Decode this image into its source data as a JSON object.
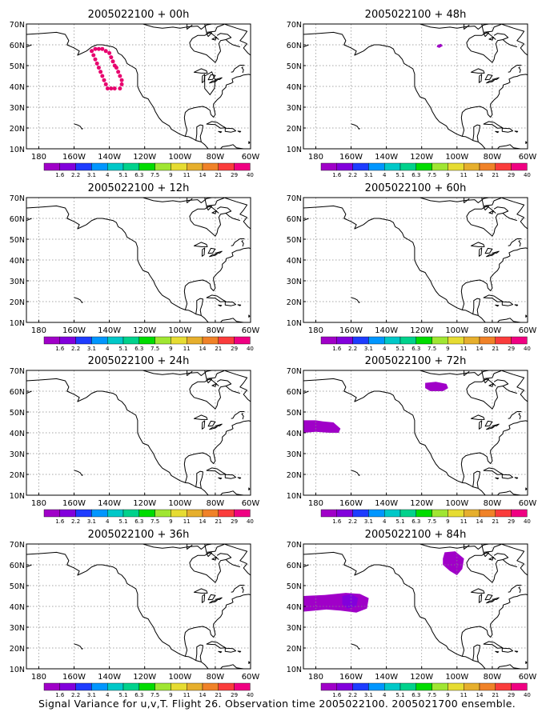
{
  "caption": "Signal Variance for u,v,T. Flight 26. Observation time 2005022100. 2005021700 ensemble.",
  "colorbar": {
    "labels": [
      "1.6",
      "2.2",
      "3.1",
      "4",
      "5.1",
      "6.3",
      "7.5",
      "9",
      "11",
      "14",
      "21",
      "29",
      "40"
    ],
    "colors": [
      "#a000c8",
      "#8200dc",
      "#1e3cff",
      "#0096ff",
      "#00c8c8",
      "#00d28c",
      "#00dc00",
      "#a0e632",
      "#e6dc32",
      "#e6af2d",
      "#f08228",
      "#fa3c3c",
      "#f00082"
    ]
  },
  "map_layout": {
    "xticks": [
      "180",
      "160W",
      "140W",
      "120W",
      "100W",
      "80W",
      "60W"
    ],
    "yticks": [
      "10N",
      "20N",
      "30N",
      "40N",
      "50N",
      "60N",
      "70N"
    ],
    "grid": "dotted"
  },
  "chart_data": [
    {
      "type": "map",
      "title": "2005022100 + 00h",
      "lon_range": [
        -187,
        -60
      ],
      "lat_range": [
        10,
        70
      ],
      "features": [
        {
          "kind": "target_dots",
          "color": "#e8006e",
          "points": [
            [
              -150,
              57
            ],
            [
              -149,
              55
            ],
            [
              -148,
              53
            ],
            [
              -147,
              51
            ],
            [
              -146,
              49
            ],
            [
              -145,
              47
            ],
            [
              -144,
              45
            ],
            [
              -143,
              43
            ],
            [
              -142,
              41
            ],
            [
              -141,
              39
            ],
            [
              -139,
              39
            ],
            [
              -137,
              39
            ],
            [
              -134,
              39
            ],
            [
              -133,
              41
            ],
            [
              -133,
              43
            ],
            [
              -134,
              45
            ],
            [
              -135,
              47
            ],
            [
              -136,
              49
            ],
            [
              -137,
              50
            ],
            [
              -138,
              52
            ],
            [
              -139,
              54
            ],
            [
              -140,
              56
            ],
            [
              -142,
              57
            ],
            [
              -144,
              58
            ],
            [
              -146,
              58
            ],
            [
              -148,
              58
            ]
          ]
        }
      ]
    },
    {
      "type": "map",
      "title": "2005022100 + 12h",
      "lon_range": [
        -187,
        -60
      ],
      "lat_range": [
        10,
        70
      ],
      "features": []
    },
    {
      "type": "map",
      "title": "2005022100 + 24h",
      "lon_range": [
        -187,
        -60
      ],
      "lat_range": [
        10,
        70
      ],
      "features": []
    },
    {
      "type": "map",
      "title": "2005022100 + 36h",
      "lon_range": [
        -187,
        -60
      ],
      "lat_range": [
        10,
        70
      ],
      "features": []
    },
    {
      "type": "map",
      "title": "2005022100 + 48h",
      "lon_range": [
        -187,
        -60
      ],
      "lat_range": [
        10,
        70
      ],
      "features": [
        {
          "kind": "region",
          "level": "1.6",
          "color": "#a000c8",
          "points": [
            [
              -111,
              60
            ],
            [
              -109,
              60.5
            ],
            [
              -108,
              59.5
            ],
            [
              -110,
              58.5
            ],
            [
              -111.5,
              59
            ]
          ]
        }
      ]
    },
    {
      "type": "map",
      "title": "2005022100 + 60h",
      "lon_range": [
        -187,
        -60
      ],
      "lat_range": [
        10,
        70
      ],
      "features": []
    },
    {
      "type": "map",
      "title": "2005022100 + 72h",
      "lon_range": [
        -187,
        -60
      ],
      "lat_range": [
        10,
        70
      ],
      "features": [
        {
          "kind": "region",
          "level": "1.6",
          "color": "#a000c8",
          "points": [
            [
              -118,
              64
            ],
            [
              -112,
              64.5
            ],
            [
              -106,
              63.5
            ],
            [
              -105,
              61.5
            ],
            [
              -108,
              60
            ],
            [
              -115,
              60
            ],
            [
              -118,
              61.5
            ]
          ]
        },
        {
          "kind": "region",
          "level": "1.6",
          "color": "#a000c8",
          "points": [
            [
              -187,
              46
            ],
            [
              -180,
              46
            ],
            [
              -176,
              45.5
            ],
            [
              -170,
              45
            ],
            [
              -166,
              42
            ],
            [
              -167,
              40
            ],
            [
              -172,
              40
            ],
            [
              -180,
              40.5
            ],
            [
              -187,
              40
            ]
          ]
        }
      ]
    },
    {
      "type": "map",
      "title": "2005022100 + 84h",
      "lon_range": [
        -187,
        -60
      ],
      "lat_range": [
        10,
        70
      ],
      "features": [
        {
          "kind": "region",
          "level": "1.6",
          "color": "#a000c8",
          "points": [
            [
              -107,
              66
            ],
            [
              -101,
              66.5
            ],
            [
              -96,
              63
            ],
            [
              -97,
              58
            ],
            [
              -100,
              55
            ],
            [
              -104,
              57
            ],
            [
              -108,
              60
            ],
            [
              -108,
              63
            ]
          ]
        },
        {
          "kind": "region",
          "level": "1.6",
          "color": "#a000c8",
          "points": [
            [
              -187,
              45
            ],
            [
              -175,
              45.5
            ],
            [
              -163,
              46.5
            ],
            [
              -155,
              46
            ],
            [
              -150,
              44
            ],
            [
              -151,
              39
            ],
            [
              -157,
              37
            ],
            [
              -166,
              38
            ],
            [
              -174,
              38.5
            ],
            [
              -187,
              37.5
            ]
          ]
        },
        {
          "kind": "region",
          "level": "2.2",
          "color": "#8200dc",
          "points": [
            [
              -165,
              45
            ],
            [
              -160,
              46
            ],
            [
              -156,
              44
            ],
            [
              -157,
              40
            ],
            [
              -162,
              39
            ],
            [
              -165,
              41
            ]
          ]
        }
      ]
    }
  ]
}
